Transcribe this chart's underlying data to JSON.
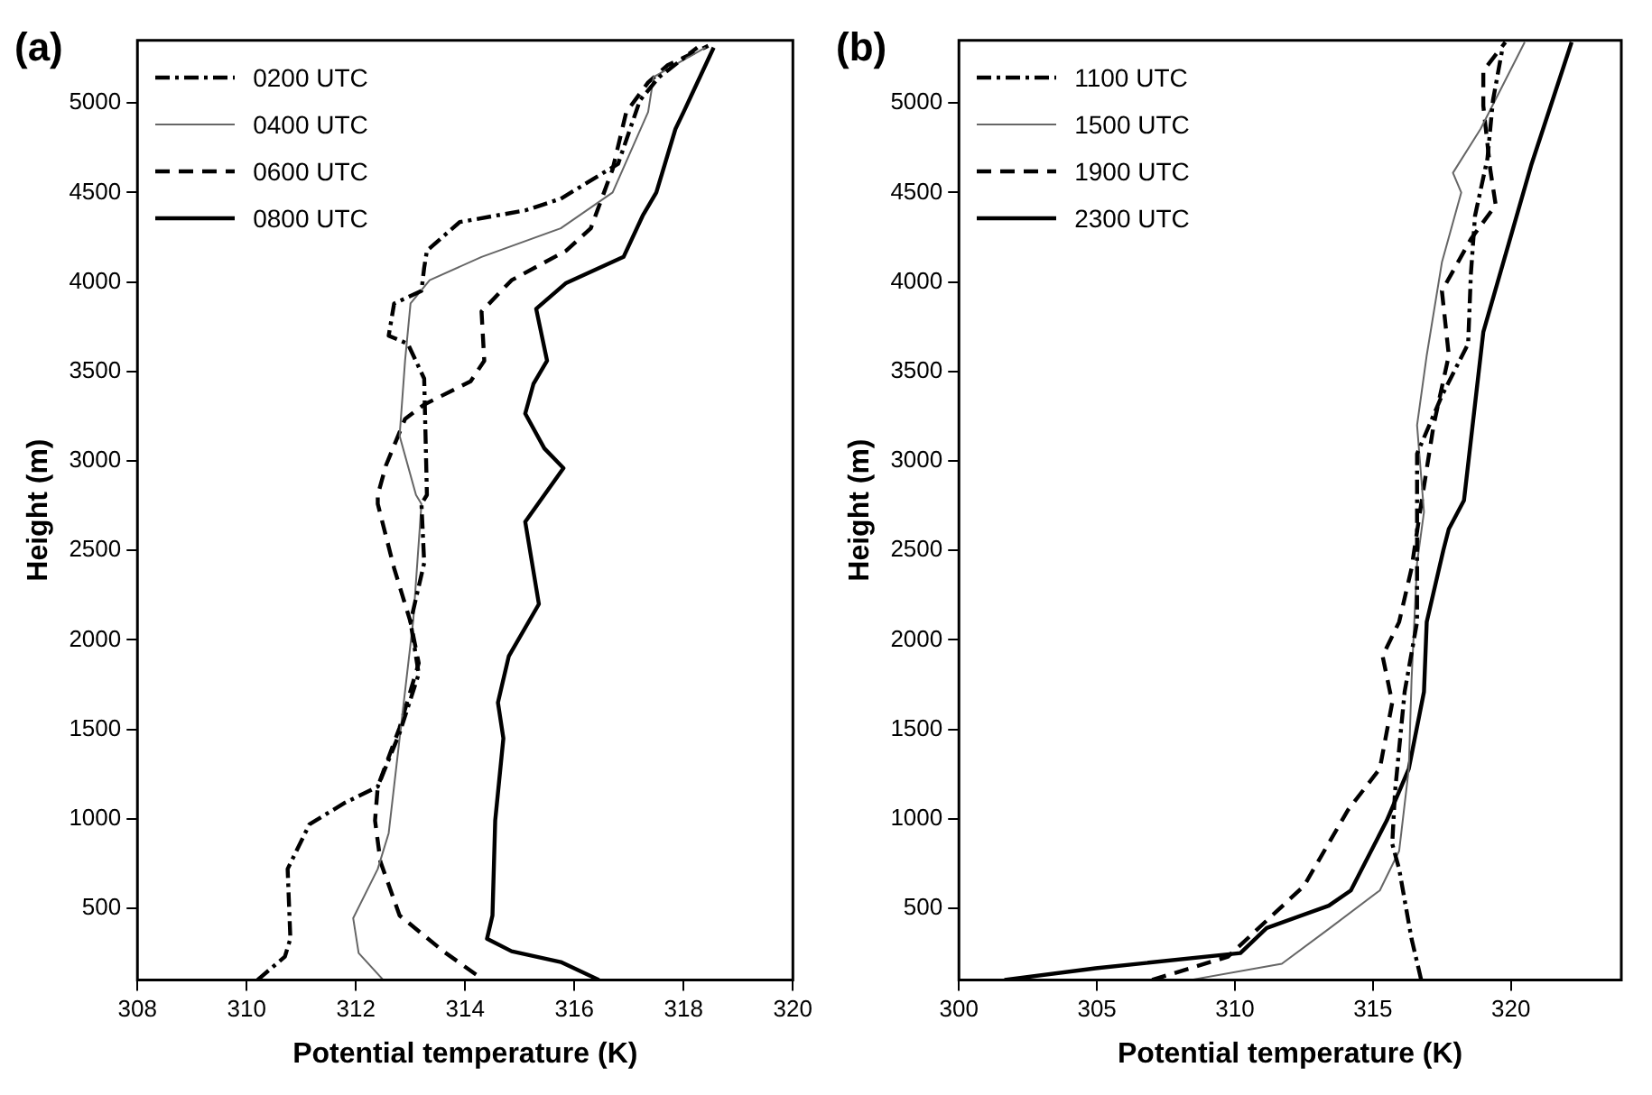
{
  "chart_data": [
    {
      "type": "line",
      "title": "(a)",
      "xlabel": "Potential temperature (K)",
      "ylabel": "Height (m)",
      "xlim": [
        308,
        320
      ],
      "xticks": [
        308,
        310,
        312,
        314,
        316,
        318,
        320
      ],
      "ylim": [
        100,
        5350
      ],
      "yticks": [
        500,
        1000,
        1500,
        2000,
        2500,
        3000,
        3500,
        4000,
        4500,
        5000
      ],
      "grid": false,
      "legend": "top left",
      "marker": "none",
      "series": [
        {
          "name": "0200 UTC",
          "color": "#000000",
          "line_style": "dashdot",
          "x": [
            310.2,
            310.7,
            310.8,
            310.75,
            311.15,
            311.8,
            312.4,
            312.8,
            313.15,
            313.0,
            313.25,
            313.2,
            313.3,
            313.25,
            312.95,
            312.6,
            312.7,
            313.2,
            313.25,
            313.3,
            313.9,
            315.1,
            315.75,
            316.8,
            317.2,
            317.55,
            318.25
          ],
          "values": [
            100,
            230,
            330,
            720,
            970,
            1090,
            1180,
            1480,
            1810,
            2100,
            2430,
            2760,
            2810,
            3460,
            3655,
            3700,
            3880,
            3950,
            4080,
            4175,
            4335,
            4400,
            4465,
            4660,
            5015,
            5145,
            5310
          ]
        },
        {
          "name": "0400 UTC",
          "color": "#666666",
          "line_style": "solid",
          "x": [
            312.5,
            312.05,
            311.95,
            312.4,
            312.6,
            312.8,
            313.05,
            313.2,
            313.1,
            312.8,
            312.9,
            313.0,
            313.35,
            314.3,
            315.75,
            316.7,
            317.35,
            317.45,
            318.4
          ],
          "values": [
            100,
            250,
            445,
            720,
            920,
            1450,
            2110,
            2760,
            2810,
            3140,
            3560,
            3880,
            4010,
            4140,
            4300,
            4500,
            4950,
            5145,
            5310
          ]
        },
        {
          "name": "0600 UTC",
          "color": "#000000",
          "line_style": "dashed",
          "x": [
            314.2,
            313.6,
            312.8,
            312.45,
            312.35,
            312.4,
            312.8,
            313.15,
            313.0,
            312.7,
            312.4,
            312.4,
            312.55,
            312.9,
            313.25,
            314.1,
            314.35,
            314.3,
            314.85,
            315.85,
            316.3,
            316.7,
            316.95,
            317.35,
            317.7,
            318.45
          ],
          "values": [
            130,
            260,
            460,
            760,
            990,
            1180,
            1510,
            1870,
            2100,
            2400,
            2760,
            2810,
            2975,
            3235,
            3315,
            3445,
            3560,
            3835,
            4010,
            4175,
            4300,
            4630,
            4950,
            5115,
            5210,
            5320
          ]
        },
        {
          "name": "0800 UTC",
          "color": "#000000",
          "line_style": "solid",
          "x": [
            316.45,
            315.75,
            314.85,
            314.4,
            314.5,
            314.55,
            314.7,
            314.6,
            314.8,
            315.35,
            315.1,
            315.8,
            315.45,
            315.1,
            315.25,
            315.5,
            315.3,
            315.85,
            316.9,
            317.25,
            317.5,
            317.85,
            318.0,
            318.55
          ],
          "values": [
            100,
            200,
            260,
            330,
            460,
            990,
            1450,
            1650,
            1910,
            2200,
            2660,
            2960,
            3070,
            3265,
            3430,
            3560,
            3850,
            3995,
            4140,
            4370,
            4500,
            4855,
            4950,
            5310
          ]
        }
      ]
    },
    {
      "type": "line",
      "title": "(b)",
      "xlabel": "Potential temperature (K)",
      "ylabel": "Height (m)",
      "xlim": [
        300,
        324
      ],
      "xticks": [
        300,
        305,
        310,
        315,
        320
      ],
      "ylim": [
        100,
        5350
      ],
      "yticks": [
        500,
        1000,
        1500,
        2000,
        2500,
        3000,
        3500,
        4000,
        4500,
        5000
      ],
      "grid": false,
      "legend": "top left",
      "marker": "none",
      "series": [
        {
          "name": "1100 UTC",
          "color": "#000000",
          "line_style": "dashdot",
          "x": [
            316.75,
            316.4,
            315.95,
            315.7,
            315.8,
            316.15,
            316.6,
            316.6,
            316.6,
            316.6,
            317.5,
            318.45,
            318.55,
            318.7,
            319.15,
            319.35,
            319.7
          ],
          "values": [
            100,
            330,
            720,
            860,
            1150,
            1710,
            2100,
            2550,
            2715,
            3040,
            3365,
            3655,
            4045,
            4370,
            4690,
            5015,
            5310
          ]
        },
        {
          "name": "1500 UTC",
          "color": "#666666",
          "line_style": "solid",
          "x": [
            308.4,
            311.7,
            313.4,
            315.25,
            315.95,
            316.3,
            316.4,
            316.6,
            316.85,
            316.6,
            316.95,
            317.5,
            318.2,
            317.9,
            318.9,
            320.5
          ],
          "values": [
            100,
            190,
            385,
            600,
            820,
            1280,
            1775,
            2430,
            2715,
            3200,
            3590,
            4110,
            4500,
            4610,
            4855,
            5340
          ]
        },
        {
          "name": "1900 UTC",
          "color": "#000000",
          "line_style": "dashed",
          "x": [
            307.0,
            309.75,
            311.35,
            312.5,
            314.1,
            315.25,
            315.7,
            315.35,
            315.95,
            316.4,
            316.75,
            317.2,
            317.75,
            317.5,
            318.55,
            319.45,
            319.25,
            319.0,
            319.0,
            319.8
          ],
          "values": [
            100,
            230,
            460,
            625,
            1050,
            1280,
            1650,
            1910,
            2100,
            2400,
            2760,
            3200,
            3590,
            3950,
            4240,
            4430,
            4630,
            4985,
            5180,
            5340
          ]
        },
        {
          "name": "2300 UTC",
          "color": "#000000",
          "line_style": "solid",
          "x": [
            301.65,
            304.95,
            310.2,
            311.15,
            313.4,
            314.2,
            315.5,
            316.3,
            316.85,
            316.95,
            317.55,
            317.75,
            318.3,
            319.0,
            320.75,
            322.2
          ],
          "values": [
            100,
            165,
            250,
            390,
            515,
            600,
            990,
            1280,
            1710,
            2100,
            2500,
            2620,
            2780,
            3720,
            4660,
            5340
          ]
        }
      ]
    }
  ]
}
